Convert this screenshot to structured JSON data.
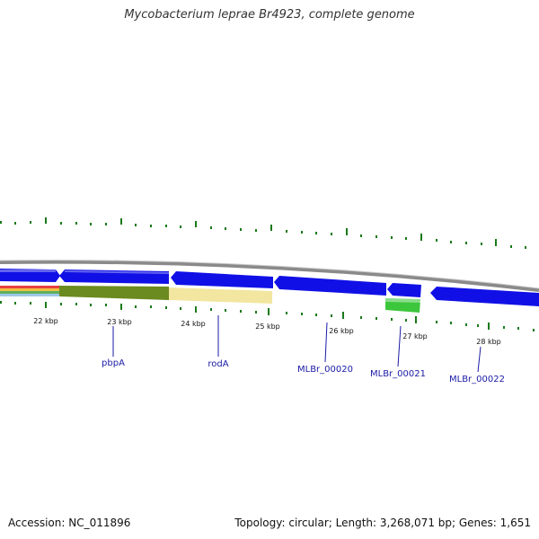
{
  "title": "Mycobacterium leprae Br4923, complete genome",
  "footer": {
    "accession": "Accession: NC_011896",
    "summary": "Topology: circular; Length: 3,268,071 bp; Genes: 1,651"
  },
  "axis": {
    "ticks": [
      {
        "label": "22 kbp"
      },
      {
        "label": "23 kbp"
      },
      {
        "label": "24 kbp"
      },
      {
        "label": "25 kbp"
      },
      {
        "label": "26 kbp"
      },
      {
        "label": "27 kbp"
      },
      {
        "label": "28 kbp"
      }
    ]
  },
  "genes": [
    {
      "label": "pbpA"
    },
    {
      "label": "rodA"
    },
    {
      "label": "MLBr_00020"
    },
    {
      "label": "MLBr_00021"
    },
    {
      "label": "MLBr_00022"
    }
  ],
  "colors": {
    "backbone": "#8a8a8a",
    "gene_arrow": "#1010e6",
    "gc_tick": "#1a7a1a",
    "track_olive": "#6b8a1f",
    "track_cream": "#f2e6a0",
    "track_green": "#3cc63c",
    "label": "#1a1aa6"
  }
}
